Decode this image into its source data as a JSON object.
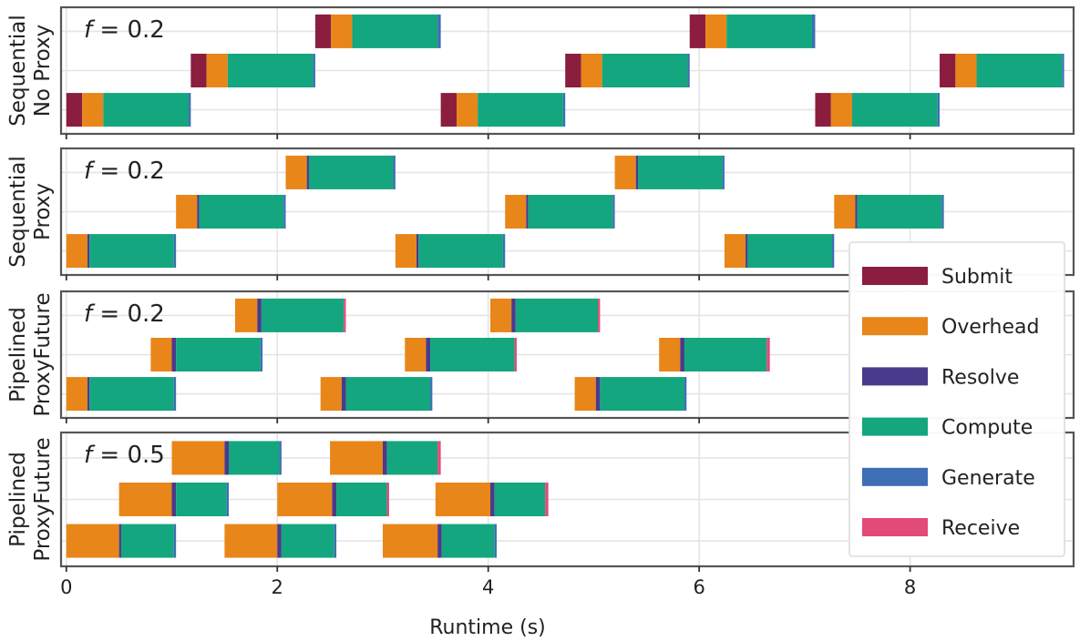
{
  "chart_data": {
    "type": "bar",
    "orientation": "horizontal-gantt",
    "xlabel": "Runtime (s)",
    "xlim": [
      -0.05,
      9.55
    ],
    "xticks": [
      0,
      2,
      4,
      6,
      8
    ],
    "xtick_labels": [
      "0",
      "2",
      "4",
      "6",
      "8"
    ],
    "grid": true,
    "colors": {
      "Submit": "#8b1e3f",
      "Overhead": "#e8861a",
      "Resolve": "#4b3a8c",
      "Compute": "#14a67e",
      "Generate": "#3e6eb4",
      "Receive": "#e24a7a"
    },
    "legend": {
      "placement": "right",
      "entries": [
        "Submit",
        "Overhead",
        "Resolve",
        "Compute",
        "Generate",
        "Receive"
      ]
    },
    "panels": [
      {
        "ylabel_line1": "Sequential",
        "ylabel_line2": "No Proxy",
        "f_label": "f",
        "f_value": "= 0.2",
        "bars": [
          {
            "row": 0,
            "segments": [
              [
                "Submit",
                0.0,
                0.15
              ],
              [
                "Overhead",
                0.15,
                0.35
              ],
              [
                "Compute",
                0.35,
                1.16
              ],
              [
                "Generate",
                1.16,
                1.18
              ]
            ]
          },
          {
            "row": 0,
            "segments": [
              [
                "Submit",
                3.55,
                3.7
              ],
              [
                "Overhead",
                3.7,
                3.9
              ],
              [
                "Compute",
                3.9,
                4.71
              ],
              [
                "Generate",
                4.71,
                4.73
              ]
            ]
          },
          {
            "row": 0,
            "segments": [
              [
                "Submit",
                7.1,
                7.25
              ],
              [
                "Overhead",
                7.25,
                7.45
              ],
              [
                "Compute",
                7.45,
                8.26
              ],
              [
                "Generate",
                8.26,
                8.28
              ]
            ]
          },
          {
            "row": 1,
            "segments": [
              [
                "Submit",
                1.18,
                1.33
              ],
              [
                "Overhead",
                1.33,
                1.53
              ],
              [
                "Compute",
                1.53,
                2.34
              ],
              [
                "Generate",
                2.34,
                2.36
              ]
            ]
          },
          {
            "row": 1,
            "segments": [
              [
                "Submit",
                4.73,
                4.88
              ],
              [
                "Overhead",
                4.88,
                5.08
              ],
              [
                "Compute",
                5.08,
                5.89
              ],
              [
                "Generate",
                5.89,
                5.91
              ]
            ]
          },
          {
            "row": 1,
            "segments": [
              [
                "Submit",
                8.28,
                8.43
              ],
              [
                "Overhead",
                8.43,
                8.63
              ],
              [
                "Compute",
                8.63,
                9.44
              ],
              [
                "Generate",
                9.44,
                9.46
              ]
            ]
          },
          {
            "row": 2,
            "segments": [
              [
                "Submit",
                2.36,
                2.51
              ],
              [
                "Overhead",
                2.51,
                2.71
              ],
              [
                "Compute",
                2.71,
                3.52
              ],
              [
                "Generate",
                3.52,
                3.55
              ]
            ]
          },
          {
            "row": 2,
            "segments": [
              [
                "Submit",
                5.91,
                6.06
              ],
              [
                "Overhead",
                6.06,
                6.26
              ],
              [
                "Compute",
                6.26,
                7.07
              ],
              [
                "Generate",
                7.07,
                7.1
              ]
            ]
          }
        ]
      },
      {
        "ylabel_line1": "Sequential",
        "ylabel_line2": "Proxy",
        "f_label": "f",
        "f_value": "= 0.2",
        "bars": [
          {
            "row": 0,
            "segments": [
              [
                "Overhead",
                0.0,
                0.2
              ],
              [
                "Resolve",
                0.2,
                0.22
              ],
              [
                "Compute",
                0.22,
                1.02
              ],
              [
                "Generate",
                1.02,
                1.04
              ]
            ]
          },
          {
            "row": 0,
            "segments": [
              [
                "Overhead",
                3.12,
                3.32
              ],
              [
                "Resolve",
                3.32,
                3.34
              ],
              [
                "Compute",
                3.34,
                4.14
              ],
              [
                "Generate",
                4.14,
                4.16
              ]
            ]
          },
          {
            "row": 0,
            "segments": [
              [
                "Overhead",
                6.24,
                6.44
              ],
              [
                "Resolve",
                6.44,
                6.46
              ],
              [
                "Compute",
                6.46,
                7.26
              ],
              [
                "Generate",
                7.26,
                7.28
              ]
            ]
          },
          {
            "row": 1,
            "segments": [
              [
                "Overhead",
                1.04,
                1.24
              ],
              [
                "Resolve",
                1.24,
                1.26
              ],
              [
                "Compute",
                1.26,
                2.06
              ],
              [
                "Generate",
                2.06,
                2.08
              ]
            ]
          },
          {
            "row": 1,
            "segments": [
              [
                "Overhead",
                4.16,
                4.36
              ],
              [
                "Resolve",
                4.36,
                4.38
              ],
              [
                "Compute",
                4.38,
                5.18
              ],
              [
                "Generate",
                5.18,
                5.2
              ]
            ]
          },
          {
            "row": 1,
            "segments": [
              [
                "Overhead",
                7.28,
                7.48
              ],
              [
                "Resolve",
                7.48,
                7.5
              ],
              [
                "Compute",
                7.5,
                8.3
              ],
              [
                "Generate",
                8.3,
                8.32
              ]
            ]
          },
          {
            "row": 2,
            "segments": [
              [
                "Overhead",
                2.08,
                2.28
              ],
              [
                "Resolve",
                2.28,
                2.3
              ],
              [
                "Compute",
                2.3,
                3.1
              ],
              [
                "Generate",
                3.1,
                3.12
              ]
            ]
          },
          {
            "row": 2,
            "segments": [
              [
                "Overhead",
                5.2,
                5.4
              ],
              [
                "Resolve",
                5.4,
                5.42
              ],
              [
                "Compute",
                5.42,
                6.22
              ],
              [
                "Generate",
                6.22,
                6.24
              ]
            ]
          }
        ]
      },
      {
        "ylabel_line1": "Pipelined",
        "ylabel_line2": "ProxyFuture",
        "f_label": "f",
        "f_value": "= 0.2",
        "bars": [
          {
            "row": 0,
            "segments": [
              [
                "Overhead",
                0.0,
                0.2
              ],
              [
                "Resolve",
                0.2,
                0.22
              ],
              [
                "Compute",
                0.22,
                1.02
              ],
              [
                "Generate",
                1.02,
                1.04
              ]
            ]
          },
          {
            "row": 0,
            "segments": [
              [
                "Overhead",
                2.41,
                2.61
              ],
              [
                "Resolve",
                2.61,
                2.65
              ],
              [
                "Compute",
                2.65,
                3.45
              ],
              [
                "Generate",
                3.45,
                3.47
              ]
            ]
          },
          {
            "row": 0,
            "segments": [
              [
                "Overhead",
                4.82,
                5.02
              ],
              [
                "Resolve",
                5.02,
                5.06
              ],
              [
                "Compute",
                5.06,
                5.86
              ],
              [
                "Generate",
                5.86,
                5.88
              ]
            ]
          },
          {
            "row": 1,
            "segments": [
              [
                "Overhead",
                0.8,
                1.0
              ],
              [
                "Resolve",
                1.0,
                1.04
              ],
              [
                "Compute",
                1.04,
                1.84
              ],
              [
                "Generate",
                1.84,
                1.86
              ]
            ]
          },
          {
            "row": 1,
            "segments": [
              [
                "Overhead",
                3.21,
                3.41
              ],
              [
                "Resolve",
                3.41,
                3.45
              ],
              [
                "Compute",
                3.45,
                4.25
              ],
              [
                "Receive",
                4.25,
                4.27
              ]
            ]
          },
          {
            "row": 1,
            "segments": [
              [
                "Overhead",
                5.62,
                5.82
              ],
              [
                "Resolve",
                5.82,
                5.86
              ],
              [
                "Compute",
                5.86,
                6.64
              ],
              [
                "Receive",
                6.64,
                6.67
              ]
            ]
          },
          {
            "row": 2,
            "segments": [
              [
                "Overhead",
                1.6,
                1.81
              ],
              [
                "Resolve",
                1.81,
                1.85
              ],
              [
                "Compute",
                1.85,
                2.63
              ],
              [
                "Receive",
                2.63,
                2.65
              ]
            ]
          },
          {
            "row": 2,
            "segments": [
              [
                "Overhead",
                4.02,
                4.22
              ],
              [
                "Resolve",
                4.22,
                4.26
              ],
              [
                "Compute",
                4.26,
                5.04
              ],
              [
                "Receive",
                5.04,
                5.06
              ]
            ]
          }
        ]
      },
      {
        "ylabel_line1": "Pipelined",
        "ylabel_line2": "ProxyFuture",
        "f_label": "f",
        "f_value": "= 0.5",
        "bars": [
          {
            "row": 0,
            "segments": [
              [
                "Overhead",
                0.0,
                0.5
              ],
              [
                "Resolve",
                0.5,
                0.52
              ],
              [
                "Compute",
                0.52,
                1.02
              ],
              [
                "Generate",
                1.02,
                1.04
              ]
            ]
          },
          {
            "row": 0,
            "segments": [
              [
                "Overhead",
                1.5,
                2.0
              ],
              [
                "Resolve",
                2.0,
                2.04
              ],
              [
                "Compute",
                2.04,
                2.54
              ],
              [
                "Generate",
                2.54,
                2.56
              ]
            ]
          },
          {
            "row": 0,
            "segments": [
              [
                "Overhead",
                3.0,
                3.52
              ],
              [
                "Resolve",
                3.52,
                3.56
              ],
              [
                "Compute",
                3.56,
                4.06
              ],
              [
                "Generate",
                4.06,
                4.08
              ]
            ]
          },
          {
            "row": 1,
            "segments": [
              [
                "Overhead",
                0.5,
                1.0
              ],
              [
                "Resolve",
                1.0,
                1.04
              ],
              [
                "Compute",
                1.04,
                1.52
              ],
              [
                "Generate",
                1.52,
                1.54
              ]
            ]
          },
          {
            "row": 1,
            "segments": [
              [
                "Overhead",
                2.0,
                2.52
              ],
              [
                "Resolve",
                2.52,
                2.56
              ],
              [
                "Compute",
                2.56,
                3.04
              ],
              [
                "Receive",
                3.04,
                3.06
              ]
            ]
          },
          {
            "row": 1,
            "segments": [
              [
                "Overhead",
                3.5,
                4.02
              ],
              [
                "Resolve",
                4.02,
                4.06
              ],
              [
                "Compute",
                4.06,
                4.54
              ],
              [
                "Receive",
                4.54,
                4.57
              ]
            ]
          },
          {
            "row": 2,
            "segments": [
              [
                "Overhead",
                1.0,
                1.5
              ],
              [
                "Resolve",
                1.5,
                1.54
              ],
              [
                "Compute",
                1.54,
                2.02
              ],
              [
                "Generate",
                2.02,
                2.04
              ]
            ]
          },
          {
            "row": 2,
            "segments": [
              [
                "Overhead",
                2.5,
                3.0
              ],
              [
                "Resolve",
                3.0,
                3.04
              ],
              [
                "Compute",
                3.04,
                3.52
              ],
              [
                "Receive",
                3.52,
                3.55
              ]
            ]
          }
        ]
      }
    ]
  }
}
